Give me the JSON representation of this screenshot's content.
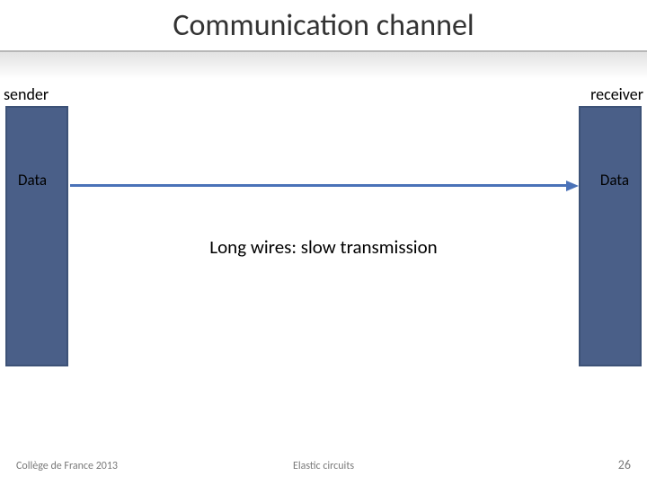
{
  "title": "Communication channel",
  "labels": {
    "sender": "sender",
    "receiver": "receiver",
    "data_left": "Data",
    "data_right": "Data"
  },
  "caption": "Long wires: slow transmission",
  "footer": {
    "left": "Collège de France 2013",
    "center": "Elastic circuits",
    "page": "26"
  },
  "style": {
    "block_fill": "#4a5f88",
    "block_border": "#3d5277",
    "arrow_color": "#4a72b8",
    "title_color": "#333333",
    "underline_color": "#b7b7b7",
    "footer_color": "#7a7a7a",
    "background": "#ffffff",
    "title_fontsize": 34,
    "label_fontsize": 18,
    "data_fontsize": 17,
    "caption_fontsize": 21,
    "footer_fontsize": 12,
    "block_width": 70,
    "block_height": 290,
    "arrow_thickness": 3
  }
}
